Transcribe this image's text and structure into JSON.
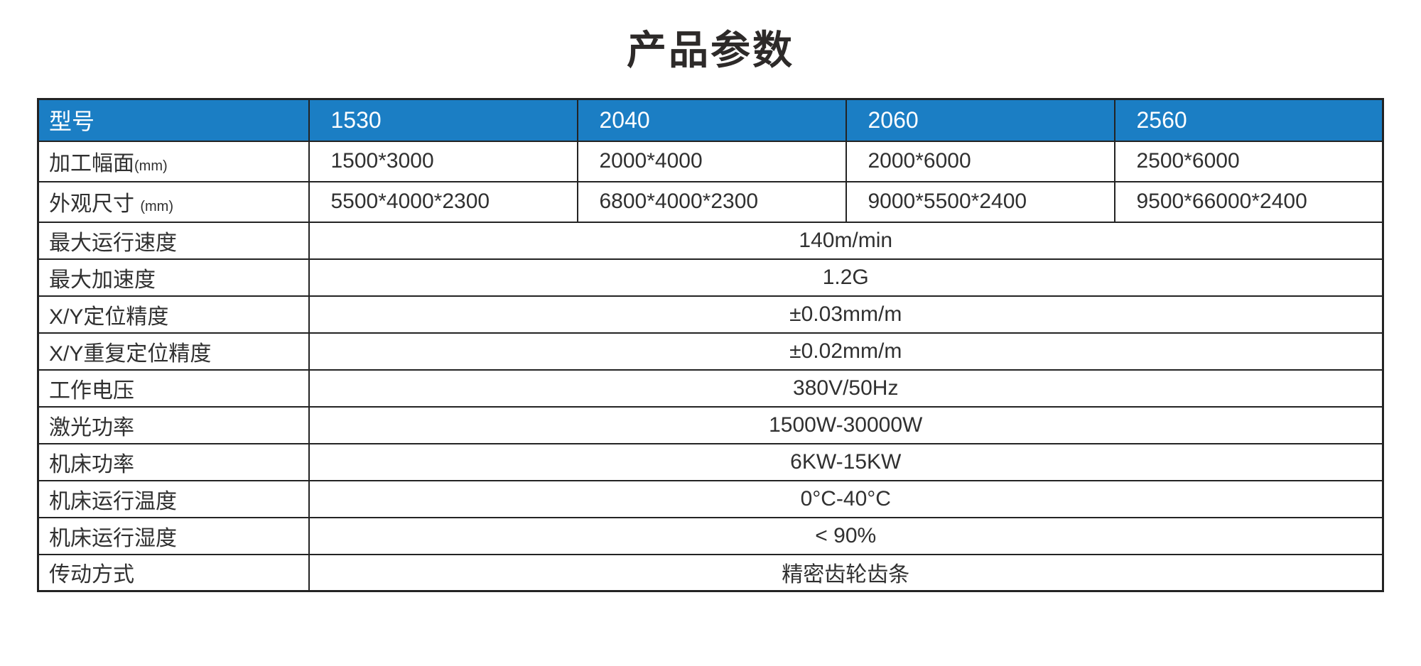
{
  "title": "产品参数",
  "colors": {
    "header_bg": "#1b7ec4",
    "header_text": "#ffffff",
    "border": "#232323",
    "body_text": "#303030"
  },
  "table": {
    "header": {
      "label": "型号",
      "models": [
        "1530",
        "2040",
        "2060",
        "2560"
      ]
    },
    "dimension_rows": [
      {
        "label": "加工幅面",
        "unit": "(mm)",
        "values": [
          "1500*3000",
          "2000*4000",
          "2000*6000",
          "2500*6000"
        ]
      },
      {
        "label": "外观尺寸",
        "unit": "(mm)",
        "values": [
          "5500*4000*2300",
          "6800*4000*2300",
          "9000*5500*2400",
          "9500*66000*2400"
        ]
      }
    ],
    "spec_rows": [
      {
        "label": "最大运行速度",
        "value": "140m/min"
      },
      {
        "label": "最大加速度",
        "value": "1.2G"
      },
      {
        "label": "X/Y定位精度",
        "value": "±0.03mm/m"
      },
      {
        "label": "X/Y重复定位精度",
        "value": "±0.02mm/m"
      },
      {
        "label": "工作电压",
        "value": "380V/50Hz"
      },
      {
        "label": "激光功率",
        "value": "1500W-30000W"
      },
      {
        "label": "机床功率",
        "value": "6KW-15KW"
      },
      {
        "label": "机床运行温度",
        "value": "0°C-40°C"
      },
      {
        "label": "机床运行湿度",
        "value": "< 90%"
      },
      {
        "label": "传动方式",
        "value": "精密齿轮齿条"
      }
    ]
  }
}
